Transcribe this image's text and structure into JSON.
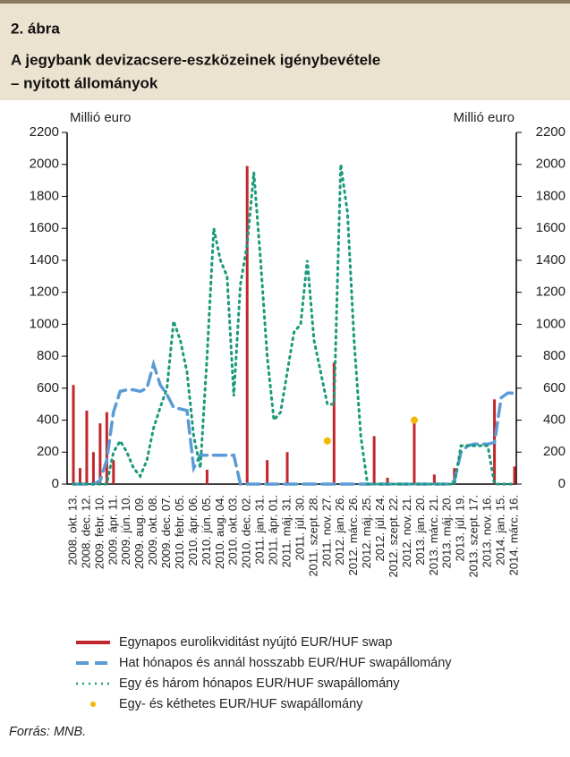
{
  "chart_data": {
    "type": "combo",
    "figure_label": "2. ábra",
    "title": [
      "A jegybank devizacsere-eszközeinek igénybevétele",
      "– nyitott állományok"
    ],
    "y_label": "Millió euro",
    "y2_label": "Millió euro",
    "source": "Forrás: MNB.",
    "categories": [
      "2008. okt. 13.",
      null,
      "2008. dec. 12.",
      null,
      "2009. febr. 10.",
      null,
      "2009. ápr. 11.",
      null,
      "2009. jún. 10.",
      null,
      "2009. aug. 09.",
      null,
      "2009. okt. 08.",
      null,
      "2009. dec. 07.",
      null,
      "2010. febr. 05.",
      null,
      "2010. ápr. 06.",
      null,
      "2010. jún. 05.",
      null,
      "2010. aug. 04.",
      null,
      "2010. okt. 03.",
      null,
      "2010. dec. 02.",
      null,
      "2011. jan. 31.",
      null,
      "2011. ápr. 01.",
      null,
      "2011. máj. 31.",
      null,
      "2011. júl. 30.",
      null,
      "2011. szept. 28.",
      null,
      "2011. nov. 27.",
      null,
      "2012. jan. 26.",
      null,
      "2012. márc. 26.",
      null,
      "2012. máj. 25.",
      null,
      "2012. júl. 24.",
      null,
      "2012. szept. 22.",
      null,
      "2012. nov. 21.",
      null,
      "2013. jan. 20.",
      null,
      "2013. márc. 21.",
      null,
      "2013. máj. 20.",
      null,
      "2013. júl. 19.",
      null,
      "2013. szept. 17.",
      null,
      "2013. nov. 16.",
      null,
      "2014. jan. 15.",
      null,
      "2014. márc. 16."
    ],
    "ylim": [
      0,
      2200
    ],
    "yticks": [
      0,
      200,
      400,
      600,
      800,
      1000,
      1200,
      1400,
      1600,
      1800,
      2000,
      2200
    ],
    "y2lim": [
      0,
      2200
    ],
    "y2ticks": [
      0,
      200,
      400,
      600,
      800,
      1000,
      1200,
      1400,
      1600,
      1800,
      2000,
      2200
    ],
    "series": [
      {
        "name": "Egynapos eurolikviditást nyújtó EUR/HUF swap",
        "color": "#c0272d",
        "mark": "bar",
        "values": [
          620,
          100,
          460,
          200,
          380,
          450,
          150,
          0,
          0,
          0,
          0,
          0,
          0,
          0,
          0,
          0,
          0,
          0,
          0,
          0,
          90,
          0,
          0,
          0,
          0,
          0,
          1990,
          0,
          0,
          150,
          0,
          0,
          200,
          0,
          0,
          0,
          0,
          0,
          0,
          760,
          0,
          0,
          0,
          0,
          0,
          300,
          0,
          40,
          0,
          0,
          0,
          400,
          0,
          0,
          60,
          0,
          0,
          100,
          0,
          0,
          0,
          0,
          0,
          530,
          0,
          0,
          110
        ]
      },
      {
        "name": "Hat hónapos és annál hosszabb EUR/HUF swapállomány",
        "color": "#5b9bd5",
        "mark": "line",
        "dash": "dashed",
        "values": [
          0,
          0,
          0,
          0,
          20,
          150,
          450,
          580,
          590,
          590,
          580,
          600,
          750,
          620,
          560,
          480,
          470,
          460,
          100,
          180,
          180,
          180,
          180,
          180,
          180,
          0,
          0,
          0,
          0,
          0,
          0,
          0,
          0,
          0,
          0,
          0,
          0,
          0,
          0,
          0,
          0,
          0,
          0,
          0,
          0,
          0,
          0,
          0,
          0,
          0,
          0,
          0,
          0,
          0,
          0,
          0,
          0,
          20,
          200,
          240,
          250,
          250,
          250,
          260,
          540,
          570,
          570
        ]
      },
      {
        "name": "Egy és három hónapos EUR/HUF swapállomány",
        "color": "#1a9a7a",
        "mark": "line",
        "dash": "dotted",
        "values": [
          0,
          0,
          0,
          0,
          0,
          0,
          200,
          270,
          200,
          100,
          50,
          150,
          350,
          480,
          600,
          1020,
          900,
          700,
          300,
          100,
          800,
          1600,
          1400,
          1300,
          550,
          1250,
          1500,
          1950,
          1400,
          800,
          400,
          450,
          700,
          950,
          1000,
          1400,
          900,
          700,
          500,
          500,
          2000,
          1700,
          900,
          300,
          0,
          0,
          0,
          0,
          0,
          0,
          0,
          0,
          0,
          0,
          0,
          0,
          0,
          0,
          240,
          240,
          240,
          240,
          240,
          0,
          0,
          0,
          0
        ]
      },
      {
        "name": "Egy- és kéthetes EUR/HUF swapállomány",
        "color": "#f5b800",
        "mark": "scatter",
        "values": [
          null,
          null,
          null,
          null,
          null,
          null,
          null,
          null,
          null,
          null,
          null,
          null,
          null,
          null,
          null,
          null,
          null,
          null,
          null,
          null,
          null,
          null,
          null,
          null,
          null,
          null,
          null,
          null,
          null,
          null,
          null,
          null,
          null,
          null,
          null,
          null,
          null,
          null,
          270,
          null,
          null,
          null,
          null,
          null,
          null,
          null,
          null,
          null,
          null,
          null,
          null,
          400,
          null,
          null,
          null,
          null,
          null,
          null,
          null,
          null,
          null,
          null,
          null,
          null,
          null,
          null,
          null
        ]
      }
    ]
  }
}
